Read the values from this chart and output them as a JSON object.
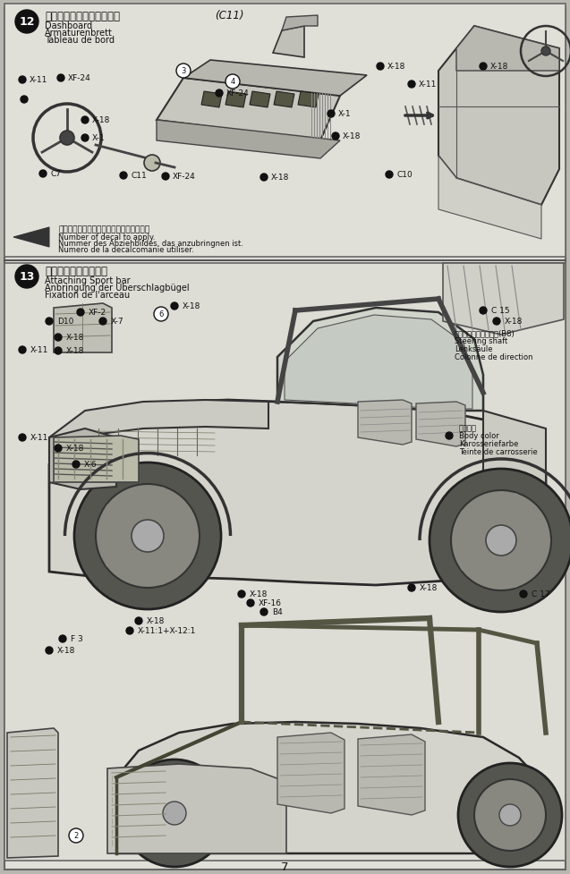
{
  "page_number": "7",
  "bg_color": "#b8b8b0",
  "panel_bg": "#e0dfd8",
  "panel_bg2": "#dddcd5",
  "line_color": "#1a1a1a",
  "section12": {
    "step_num": "12",
    "title_jp": "ダッシュボードのくみたて",
    "title_en": "Dashboard",
    "title_de": "Armaturenbrett",
    "title_fr": "Tableau de bord",
    "c11_label": "(C11)",
    "note_jp": "指示の番号のスライドマークをはります。",
    "note_en": "Number of decal to apply.",
    "note_de": "Nummer des Abziehbildes, das anzubringnen ist.",
    "note_fr": "Numero de la decalcomanie utiliser."
  },
  "section13": {
    "step_num": "13",
    "title_jp": "ロールバーのとりつけ",
    "title_en": "Attaching Sport bar",
    "title_de": "Anbringung der Uberschlagbügel",
    "title_fr": "Fixation de l'arceau",
    "steering_jp": "ステアリングシャフト(B8)",
    "steering_en": "Steering shaft",
    "steering_de": "Lenksäule",
    "steering_fr": "Colonne de direction",
    "body_color_jp": "ボディ色",
    "body_color_en": "Body color",
    "body_color_de": "Karosseriefarbe",
    "body_color_fr": "Teinte de carrosserie"
  }
}
